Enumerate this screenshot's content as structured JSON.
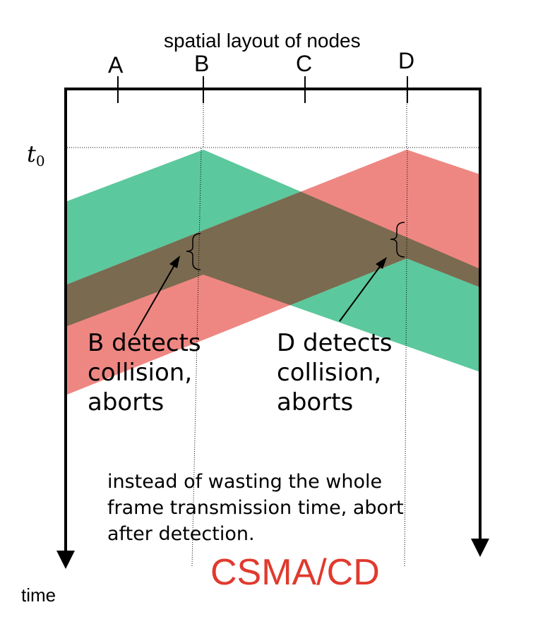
{
  "title": "spatial layout of nodes",
  "nodes": [
    "A",
    "B",
    "C",
    "D"
  ],
  "time_marker": {
    "symbol": "t",
    "subscript": "0"
  },
  "annotations": {
    "b_detects": "B detects\ncollision,\naborts",
    "d_detects": "D detects\ncollision,\naborts"
  },
  "explanation": "instead of wasting the whole\nframe transmission time, abort\nafter detection.",
  "protocol_label": "CSMA/CD",
  "time_axis_label": "time",
  "colors": {
    "b_signal": "#5cc89d",
    "d_signal": "#ee8782",
    "overlap": "#7a6a50",
    "protocol_label": "#e03a2e"
  },
  "icons": [
    "down-arrow-icon",
    "brace-icon"
  ]
}
